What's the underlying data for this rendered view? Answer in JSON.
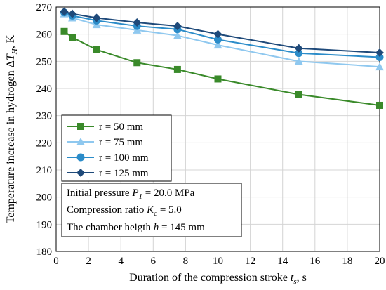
{
  "chart_data": {
    "type": "line",
    "xlabel": {
      "main": "Duration of the compression stroke ",
      "sym": "t",
      "sub": "s",
      "tail": ", s"
    },
    "ylabel": {
      "main": "Temperature increase in hydrogen Δ",
      "sym": "T",
      "sub": "H",
      "tail": ", K"
    },
    "xlim": [
      0,
      20
    ],
    "ylim": [
      180,
      270
    ],
    "xticks": [
      "0",
      "2",
      "4",
      "6",
      "8",
      "10",
      "12",
      "14",
      "16",
      "18",
      "20"
    ],
    "yticks": [
      "180",
      "190",
      "200",
      "210",
      "220",
      "230",
      "240",
      "250",
      "260",
      "270"
    ],
    "grid": true,
    "legend_position": "left-center",
    "series": [
      {
        "name": "r = 50 mm",
        "color": "#3a8a2a",
        "marker": "square",
        "x": [
          0.5,
          1,
          2.5,
          5,
          7.5,
          10,
          15,
          20
        ],
        "y": [
          261,
          258.8,
          254.3,
          249.5,
          247,
          243.5,
          237.8,
          233.8
        ]
      },
      {
        "name": "r = 75 mm",
        "color": "#8fc8ef",
        "marker": "triangle",
        "x": [
          0.5,
          1,
          2.5,
          5,
          7.5,
          10,
          15,
          20
        ],
        "y": [
          267.5,
          266,
          263.5,
          261.5,
          259.5,
          256,
          250,
          248
        ]
      },
      {
        "name": "r = 100 mm",
        "color": "#2b8cc9",
        "marker": "circle",
        "x": [
          0.5,
          1,
          2.5,
          5,
          7.5,
          10,
          15,
          20
        ],
        "y": [
          268,
          266.8,
          265,
          263,
          261.8,
          258,
          253,
          251.5
        ]
      },
      {
        "name": "r = 125 mm",
        "color": "#1f4a7a",
        "marker": "diamond",
        "x": [
          0.5,
          1,
          2.5,
          5,
          7.5,
          10,
          15,
          20
        ],
        "y": [
          268.3,
          267.5,
          266,
          264.3,
          263,
          260,
          254.8,
          253.2
        ]
      }
    ],
    "annotations": [
      {
        "pre": "Initial pressure ",
        "sym": "P",
        "sub": "1",
        "post": " = 20.0 MPa"
      },
      {
        "pre": "Compression ratio ",
        "sym": "K",
        "sub": "c",
        "post": " = 5.0"
      },
      {
        "pre": "The chamber heigth ",
        "sym": "h",
        "sub": "",
        "post": " = 145 mm"
      }
    ]
  }
}
